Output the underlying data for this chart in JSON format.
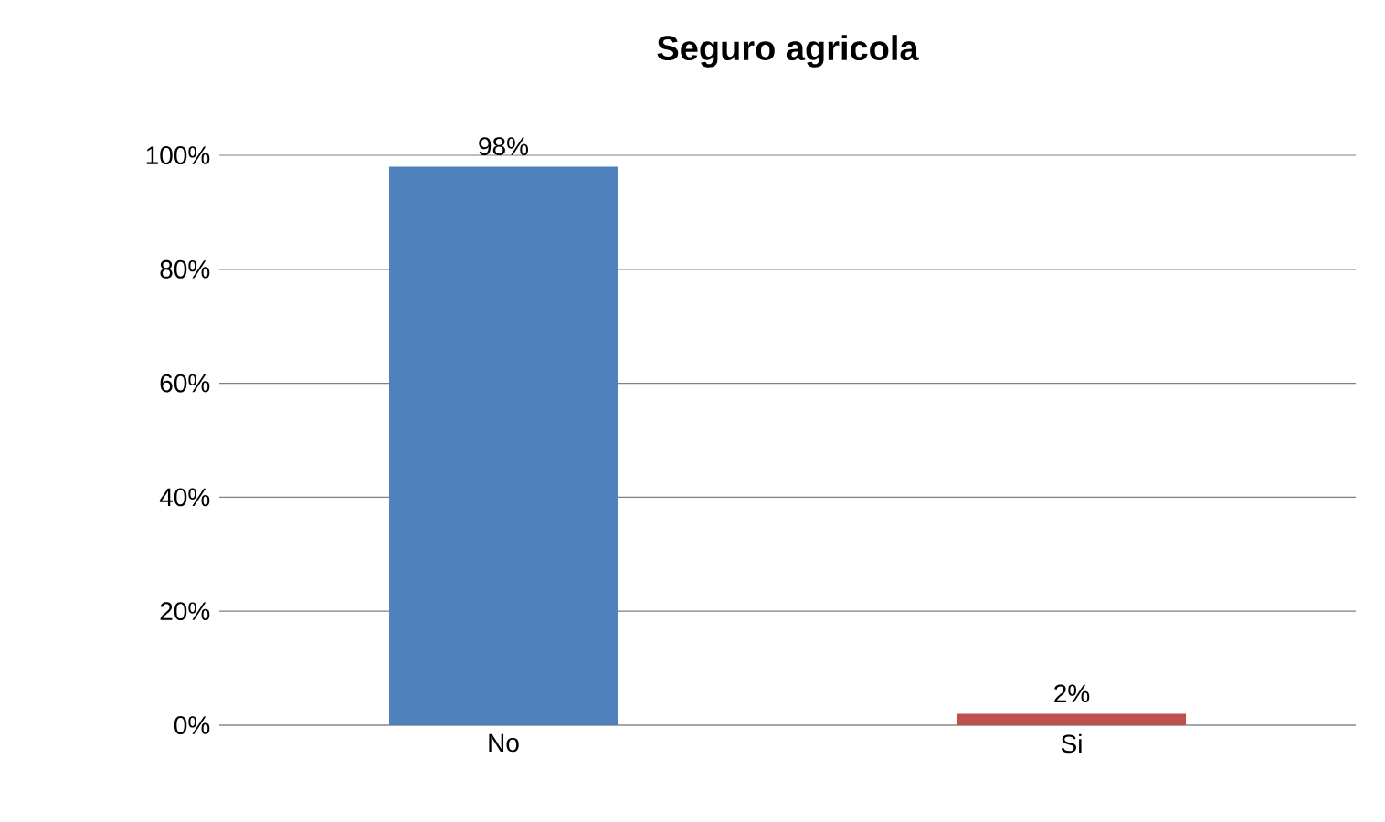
{
  "chart_data": {
    "type": "bar",
    "title": "Seguro agricola",
    "categories": [
      "No",
      "Si"
    ],
    "values": [
      98,
      2
    ],
    "colors": [
      "#4f81bd",
      "#c0504d"
    ],
    "value_labels": [
      "98%",
      "2%"
    ],
    "ylim": [
      0,
      100
    ],
    "yticks": [
      {
        "value": 0,
        "label": "0%"
      },
      {
        "value": 20,
        "label": "20%"
      },
      {
        "value": 40,
        "label": "40%"
      },
      {
        "value": 60,
        "label": "60%"
      },
      {
        "value": 80,
        "label": "80%"
      },
      {
        "value": 100,
        "label": "100%"
      }
    ],
    "grid": "y"
  }
}
